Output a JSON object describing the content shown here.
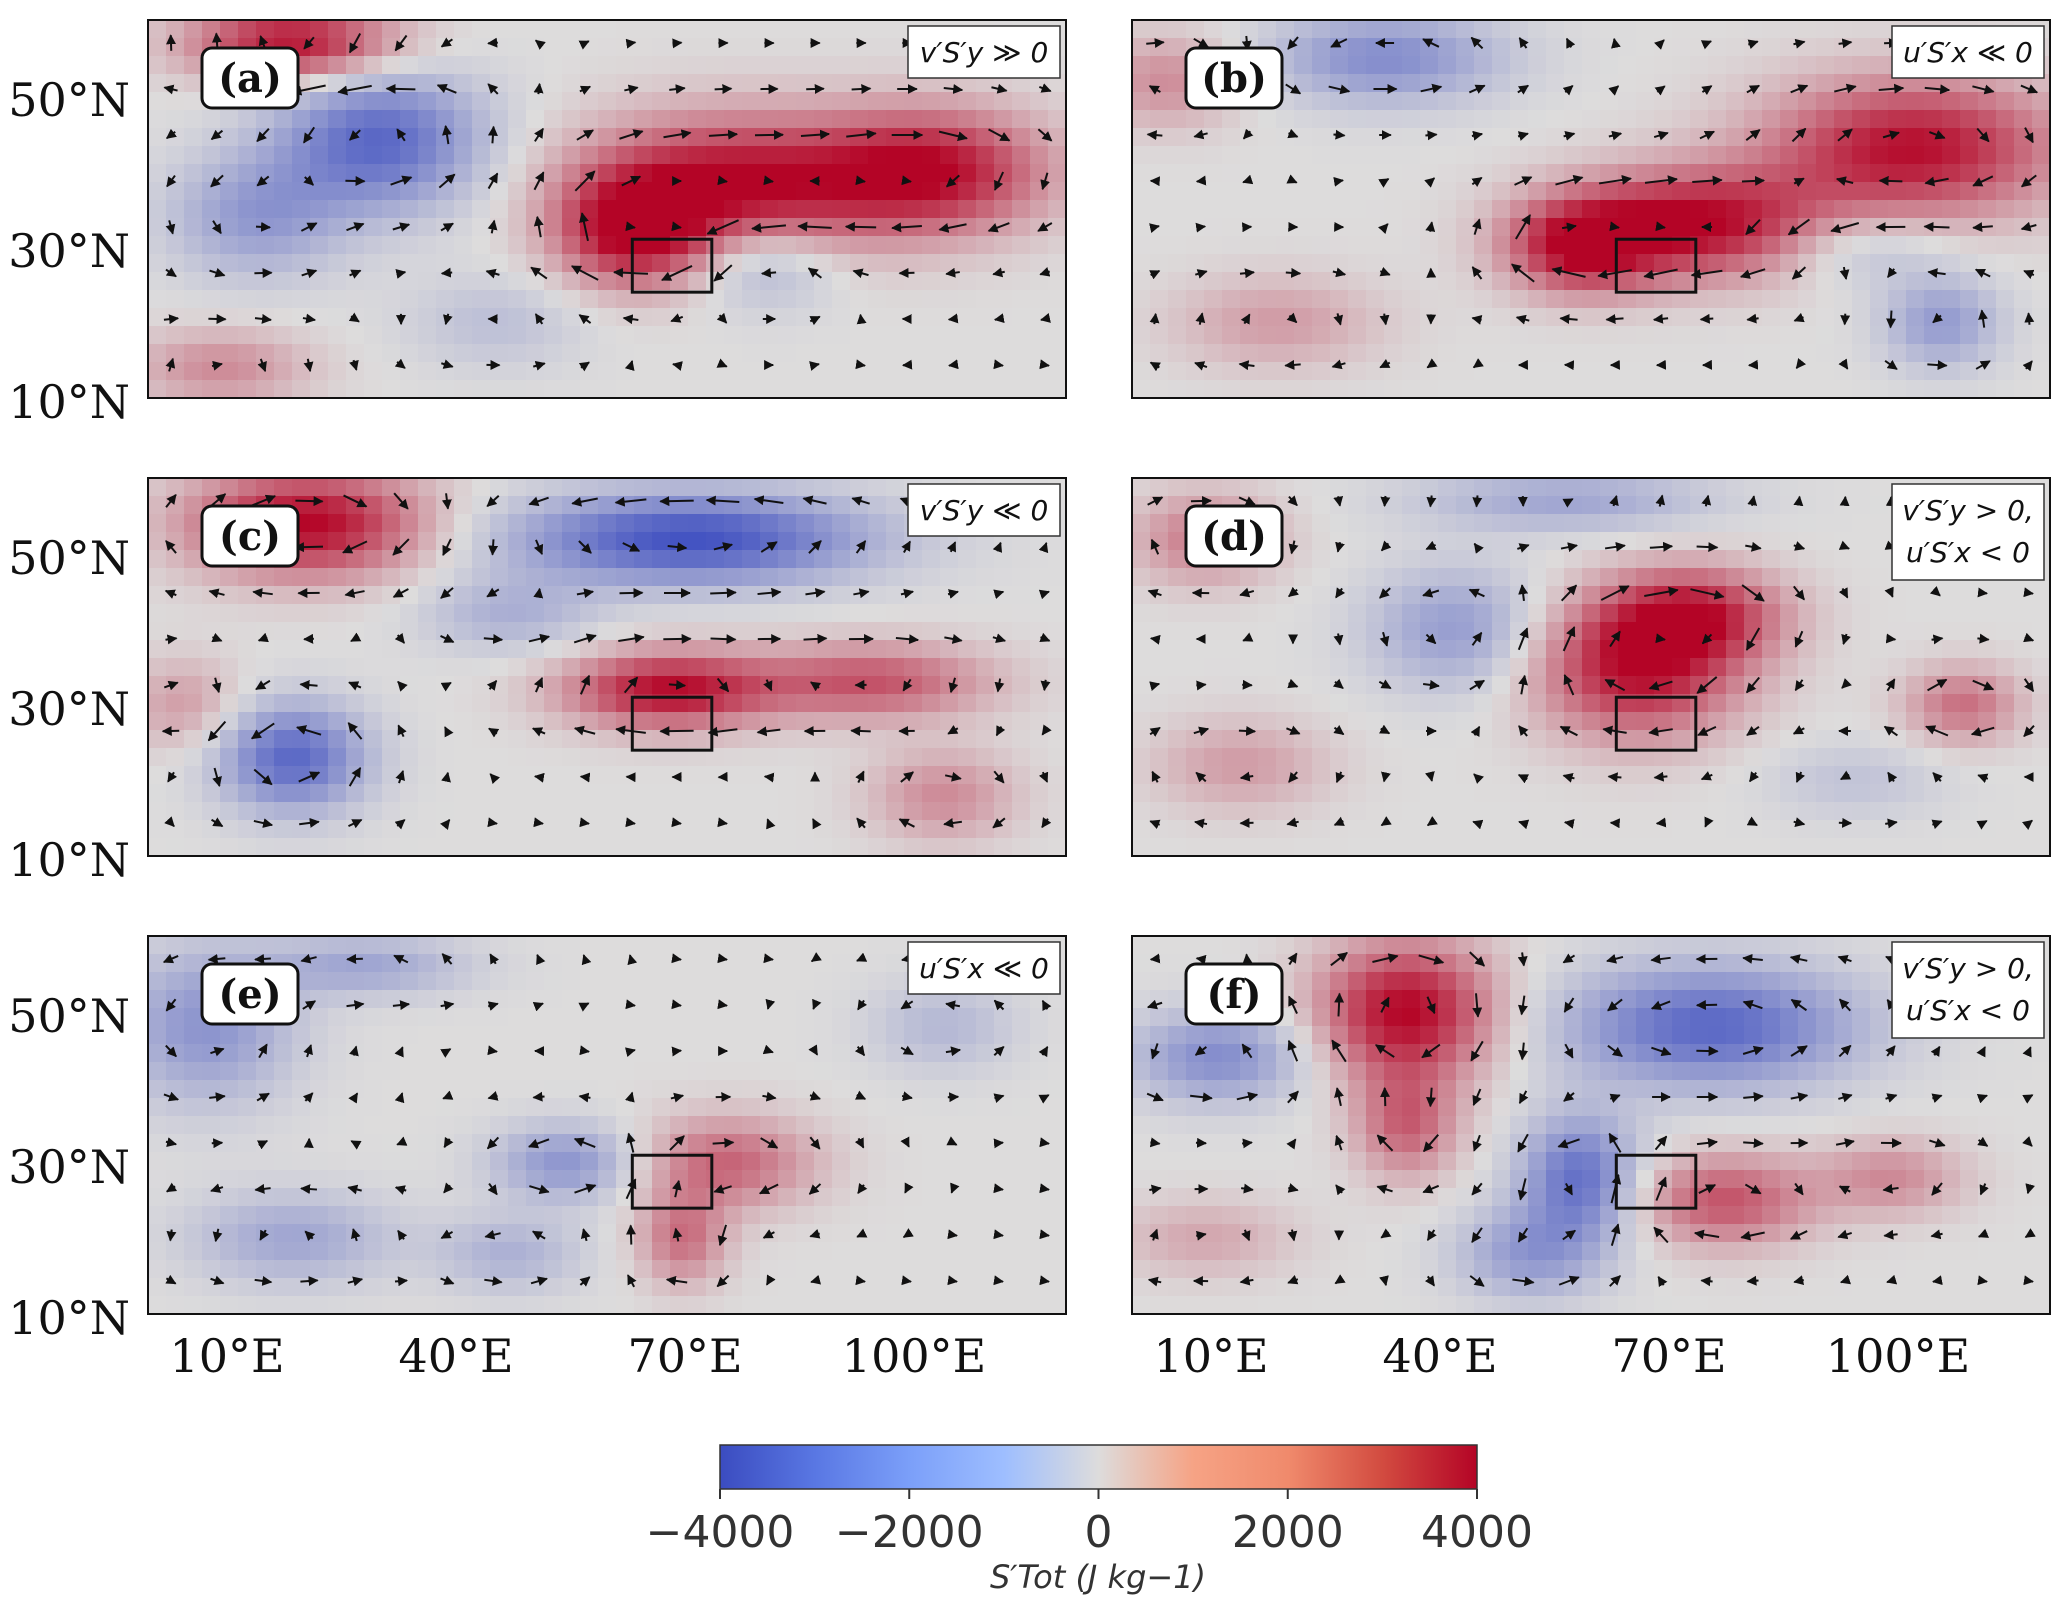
{
  "chart_data": {
    "type": "heatmap",
    "description_units": "S'Tot anomaly maps with wind vectors over 10°N–60°N, 0°E–120°E",
    "x_ticks": [
      "10°E",
      "40°E",
      "70°E",
      "100°E"
    ],
    "x_tick_values": [
      10,
      40,
      70,
      100
    ],
    "y_ticks": [
      "50°N",
      "30°N",
      "10°N"
    ],
    "y_tick_values": [
      50,
      30,
      10
    ],
    "xlim": [
      0,
      127
    ],
    "ylim": [
      10,
      60
    ],
    "box_region": {
      "lon": [
        67,
        78
      ],
      "lat": [
        24,
        31
      ]
    },
    "panels": [
      {
        "label": "(a)",
        "condition": "v′S′y ≫ 0",
        "blobs": [
          {
            "lon": 80,
            "lat": 38,
            "rx": 20,
            "ry": 9,
            "v": 4000
          },
          {
            "lon": 108,
            "lat": 40,
            "rx": 16,
            "ry": 8,
            "v": 3800
          },
          {
            "lon": 67,
            "lat": 32,
            "rx": 10,
            "ry": 7,
            "v": 3500
          },
          {
            "lon": 20,
            "lat": 57,
            "rx": 14,
            "ry": 5,
            "v": 3800
          },
          {
            "lon": 32,
            "lat": 44,
            "rx": 14,
            "ry": 9,
            "v": -3200
          },
          {
            "lon": 15,
            "lat": 34,
            "rx": 12,
            "ry": 8,
            "v": -1800
          },
          {
            "lon": 85,
            "lat": 28,
            "rx": 10,
            "ry": 6,
            "v": -1500
          },
          {
            "lon": 10,
            "lat": 14,
            "rx": 12,
            "ry": 5,
            "v": 1500
          },
          {
            "lon": 48,
            "lat": 20,
            "rx": 12,
            "ry": 6,
            "v": -800
          }
        ]
      },
      {
        "label": "(b)",
        "condition": "u′S′x ≪ 0",
        "blobs": [
          {
            "lon": 78,
            "lat": 33,
            "rx": 18,
            "ry": 7,
            "v": 4000
          },
          {
            "lon": 108,
            "lat": 43,
            "rx": 20,
            "ry": 9,
            "v": 3800
          },
          {
            "lon": 62,
            "lat": 30,
            "rx": 10,
            "ry": 6,
            "v": 3500
          },
          {
            "lon": 35,
            "lat": 55,
            "rx": 16,
            "ry": 6,
            "v": -2200
          },
          {
            "lon": 5,
            "lat": 52,
            "rx": 10,
            "ry": 6,
            "v": 1500
          },
          {
            "lon": 100,
            "lat": 30,
            "rx": 12,
            "ry": 5,
            "v": -1200
          },
          {
            "lon": 112,
            "lat": 20,
            "rx": 8,
            "ry": 6,
            "v": -1800
          },
          {
            "lon": 20,
            "lat": 20,
            "rx": 14,
            "ry": 6,
            "v": 1200
          }
        ]
      },
      {
        "label": "(c)",
        "condition": "v′S′y ≪ 0",
        "blobs": [
          {
            "lon": 22,
            "lat": 54,
            "rx": 16,
            "ry": 7,
            "v": 4000
          },
          {
            "lon": 75,
            "lat": 52,
            "rx": 24,
            "ry": 6,
            "v": -3800
          },
          {
            "lon": 72,
            "lat": 32,
            "rx": 14,
            "ry": 5,
            "v": 3800
          },
          {
            "lon": 100,
            "lat": 33,
            "rx": 16,
            "ry": 5,
            "v": 2500
          },
          {
            "lon": 20,
            "lat": 23,
            "rx": 10,
            "ry": 7,
            "v": -3200
          },
          {
            "lon": 50,
            "lat": 42,
            "rx": 12,
            "ry": 5,
            "v": -1200
          },
          {
            "lon": 110,
            "lat": 18,
            "rx": 10,
            "ry": 6,
            "v": 1500
          },
          {
            "lon": 5,
            "lat": 30,
            "rx": 8,
            "ry": 6,
            "v": 1200
          }
        ]
      },
      {
        "label": "(d)",
        "condition": "v′S′y > 0, u′S′x < 0",
        "blobs": [
          {
            "lon": 70,
            "lat": 35,
            "rx": 14,
            "ry": 9,
            "v": 3800
          },
          {
            "lon": 78,
            "lat": 42,
            "rx": 12,
            "ry": 6,
            "v": 3000
          },
          {
            "lon": 45,
            "lat": 40,
            "rx": 12,
            "ry": 8,
            "v": -1800
          },
          {
            "lon": 60,
            "lat": 57,
            "rx": 20,
            "ry": 4,
            "v": -1500
          },
          {
            "lon": 115,
            "lat": 30,
            "rx": 8,
            "ry": 5,
            "v": 2000
          },
          {
            "lon": 10,
            "lat": 52,
            "rx": 10,
            "ry": 6,
            "v": 1800
          },
          {
            "lon": 15,
            "lat": 22,
            "rx": 12,
            "ry": 6,
            "v": 1200
          },
          {
            "lon": 100,
            "lat": 20,
            "rx": 12,
            "ry": 5,
            "v": -700
          }
        ]
      },
      {
        "label": "(e)",
        "condition": "u′S′x ≪ 0",
        "blobs": [
          {
            "lon": 80,
            "lat": 30,
            "rx": 12,
            "ry": 6,
            "v": 2200
          },
          {
            "lon": 74,
            "lat": 20,
            "rx": 6,
            "ry": 6,
            "v": 2000
          },
          {
            "lon": 58,
            "lat": 30,
            "rx": 10,
            "ry": 5,
            "v": -2000
          },
          {
            "lon": 8,
            "lat": 48,
            "rx": 12,
            "ry": 10,
            "v": -2000
          },
          {
            "lon": 30,
            "lat": 56,
            "rx": 14,
            "ry": 4,
            "v": -1500
          },
          {
            "lon": 20,
            "lat": 20,
            "rx": 14,
            "ry": 6,
            "v": -1500
          },
          {
            "lon": 110,
            "lat": 48,
            "rx": 10,
            "ry": 6,
            "v": -1000
          },
          {
            "lon": 50,
            "lat": 18,
            "rx": 10,
            "ry": 5,
            "v": -1200
          }
        ]
      },
      {
        "label": "(f)",
        "condition": "v′S′y > 0, u′S′x < 0",
        "blobs": [
          {
            "lon": 38,
            "lat": 50,
            "rx": 12,
            "ry": 9,
            "v": 4000
          },
          {
            "lon": 38,
            "lat": 35,
            "rx": 7,
            "ry": 7,
            "v": 2200
          },
          {
            "lon": 80,
            "lat": 48,
            "rx": 20,
            "ry": 8,
            "v": -3200
          },
          {
            "lon": 62,
            "lat": 28,
            "rx": 8,
            "ry": 8,
            "v": -3000
          },
          {
            "lon": 82,
            "lat": 25,
            "rx": 12,
            "ry": 6,
            "v": 2500
          },
          {
            "lon": 12,
            "lat": 44,
            "rx": 12,
            "ry": 6,
            "v": -2200
          },
          {
            "lon": 105,
            "lat": 28,
            "rx": 10,
            "ry": 5,
            "v": 1500
          },
          {
            "lon": 55,
            "lat": 18,
            "rx": 10,
            "ry": 6,
            "v": -1800
          },
          {
            "lon": 10,
            "lat": 20,
            "rx": 12,
            "ry": 5,
            "v": 1000
          }
        ]
      }
    ],
    "colorbar": {
      "ticks": [
        "−4000",
        "−2000",
        "0",
        "2000",
        "4000"
      ],
      "tick_values": [
        -4000,
        -2000,
        0,
        2000,
        4000
      ],
      "range": [
        -4000,
        4000
      ],
      "label": "S′Tot (J kg−1)",
      "colormap": "coolwarm"
    }
  },
  "colors": {
    "cold": "#3b4cc0",
    "neutral": "#dddddd",
    "warm": "#b40426"
  }
}
